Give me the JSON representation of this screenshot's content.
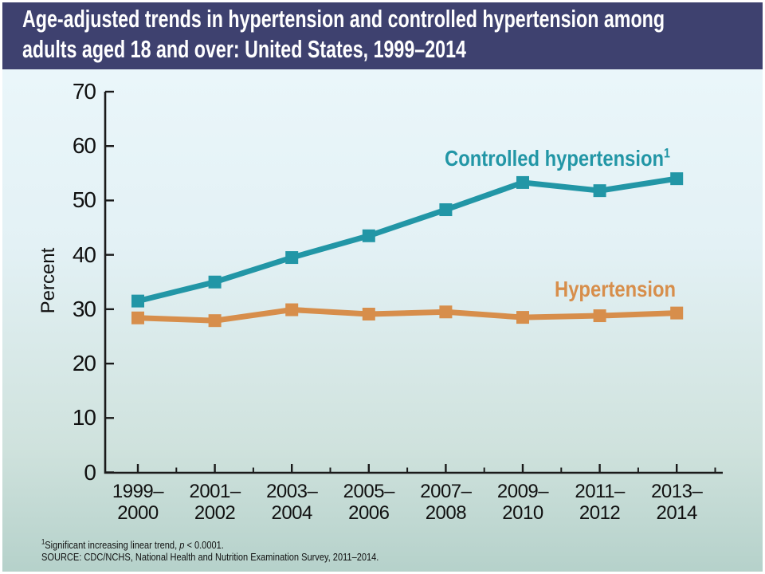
{
  "header": {
    "title_line1": "Age-adjusted trends in hypertension and controlled hypertension among",
    "title_line2": "adults aged 18 and over: United States, 1999–2014"
  },
  "chart_data": {
    "type": "line",
    "title": "Age-adjusted trends in hypertension and controlled hypertension among adults aged 18 and over: United States, 1999–2014",
    "xlabel": "",
    "ylabel": "Percent",
    "ylim": [
      0,
      70
    ],
    "yticks": [
      0,
      10,
      20,
      30,
      40,
      50,
      60,
      70
    ],
    "grid": false,
    "legend_position": "inline-labels-near-lines",
    "categories": [
      "1999–2000",
      "2001–2002",
      "2003–2004",
      "2005–2006",
      "2007–2008",
      "2009–2010",
      "2011–2012",
      "2013–2014"
    ],
    "series": [
      {
        "name": "Controlled hypertension",
        "superscript": "1",
        "color": "#2296a6",
        "marker": "square",
        "values": [
          31.5,
          35.0,
          39.5,
          43.5,
          48.3,
          53.3,
          51.8,
          54.0
        ]
      },
      {
        "name": "Hypertension",
        "superscript": "",
        "color": "#d78e4b",
        "marker": "square",
        "values": [
          28.4,
          27.9,
          29.9,
          29.1,
          29.5,
          28.5,
          28.8,
          29.3
        ]
      }
    ]
  },
  "footnotes": {
    "note1": {
      "sup": "1",
      "pre": "Significant increasing linear trend, ",
      "italic": "p",
      "post": " < 0.0001."
    },
    "source": "SOURCE: CDC/NCHS, National Health and Nutrition Examination Survey, 2011–2014."
  },
  "colors": {
    "header_bg": "#3e416f",
    "title_text": "#ffffff",
    "controlled_line": "#2296a6",
    "hypertension_line": "#d78e4b",
    "axis": "#1a1a1a",
    "background_top": "#eaf6fa",
    "background_bottom": "#b5d1ca",
    "frame_border": "#ffffff"
  }
}
